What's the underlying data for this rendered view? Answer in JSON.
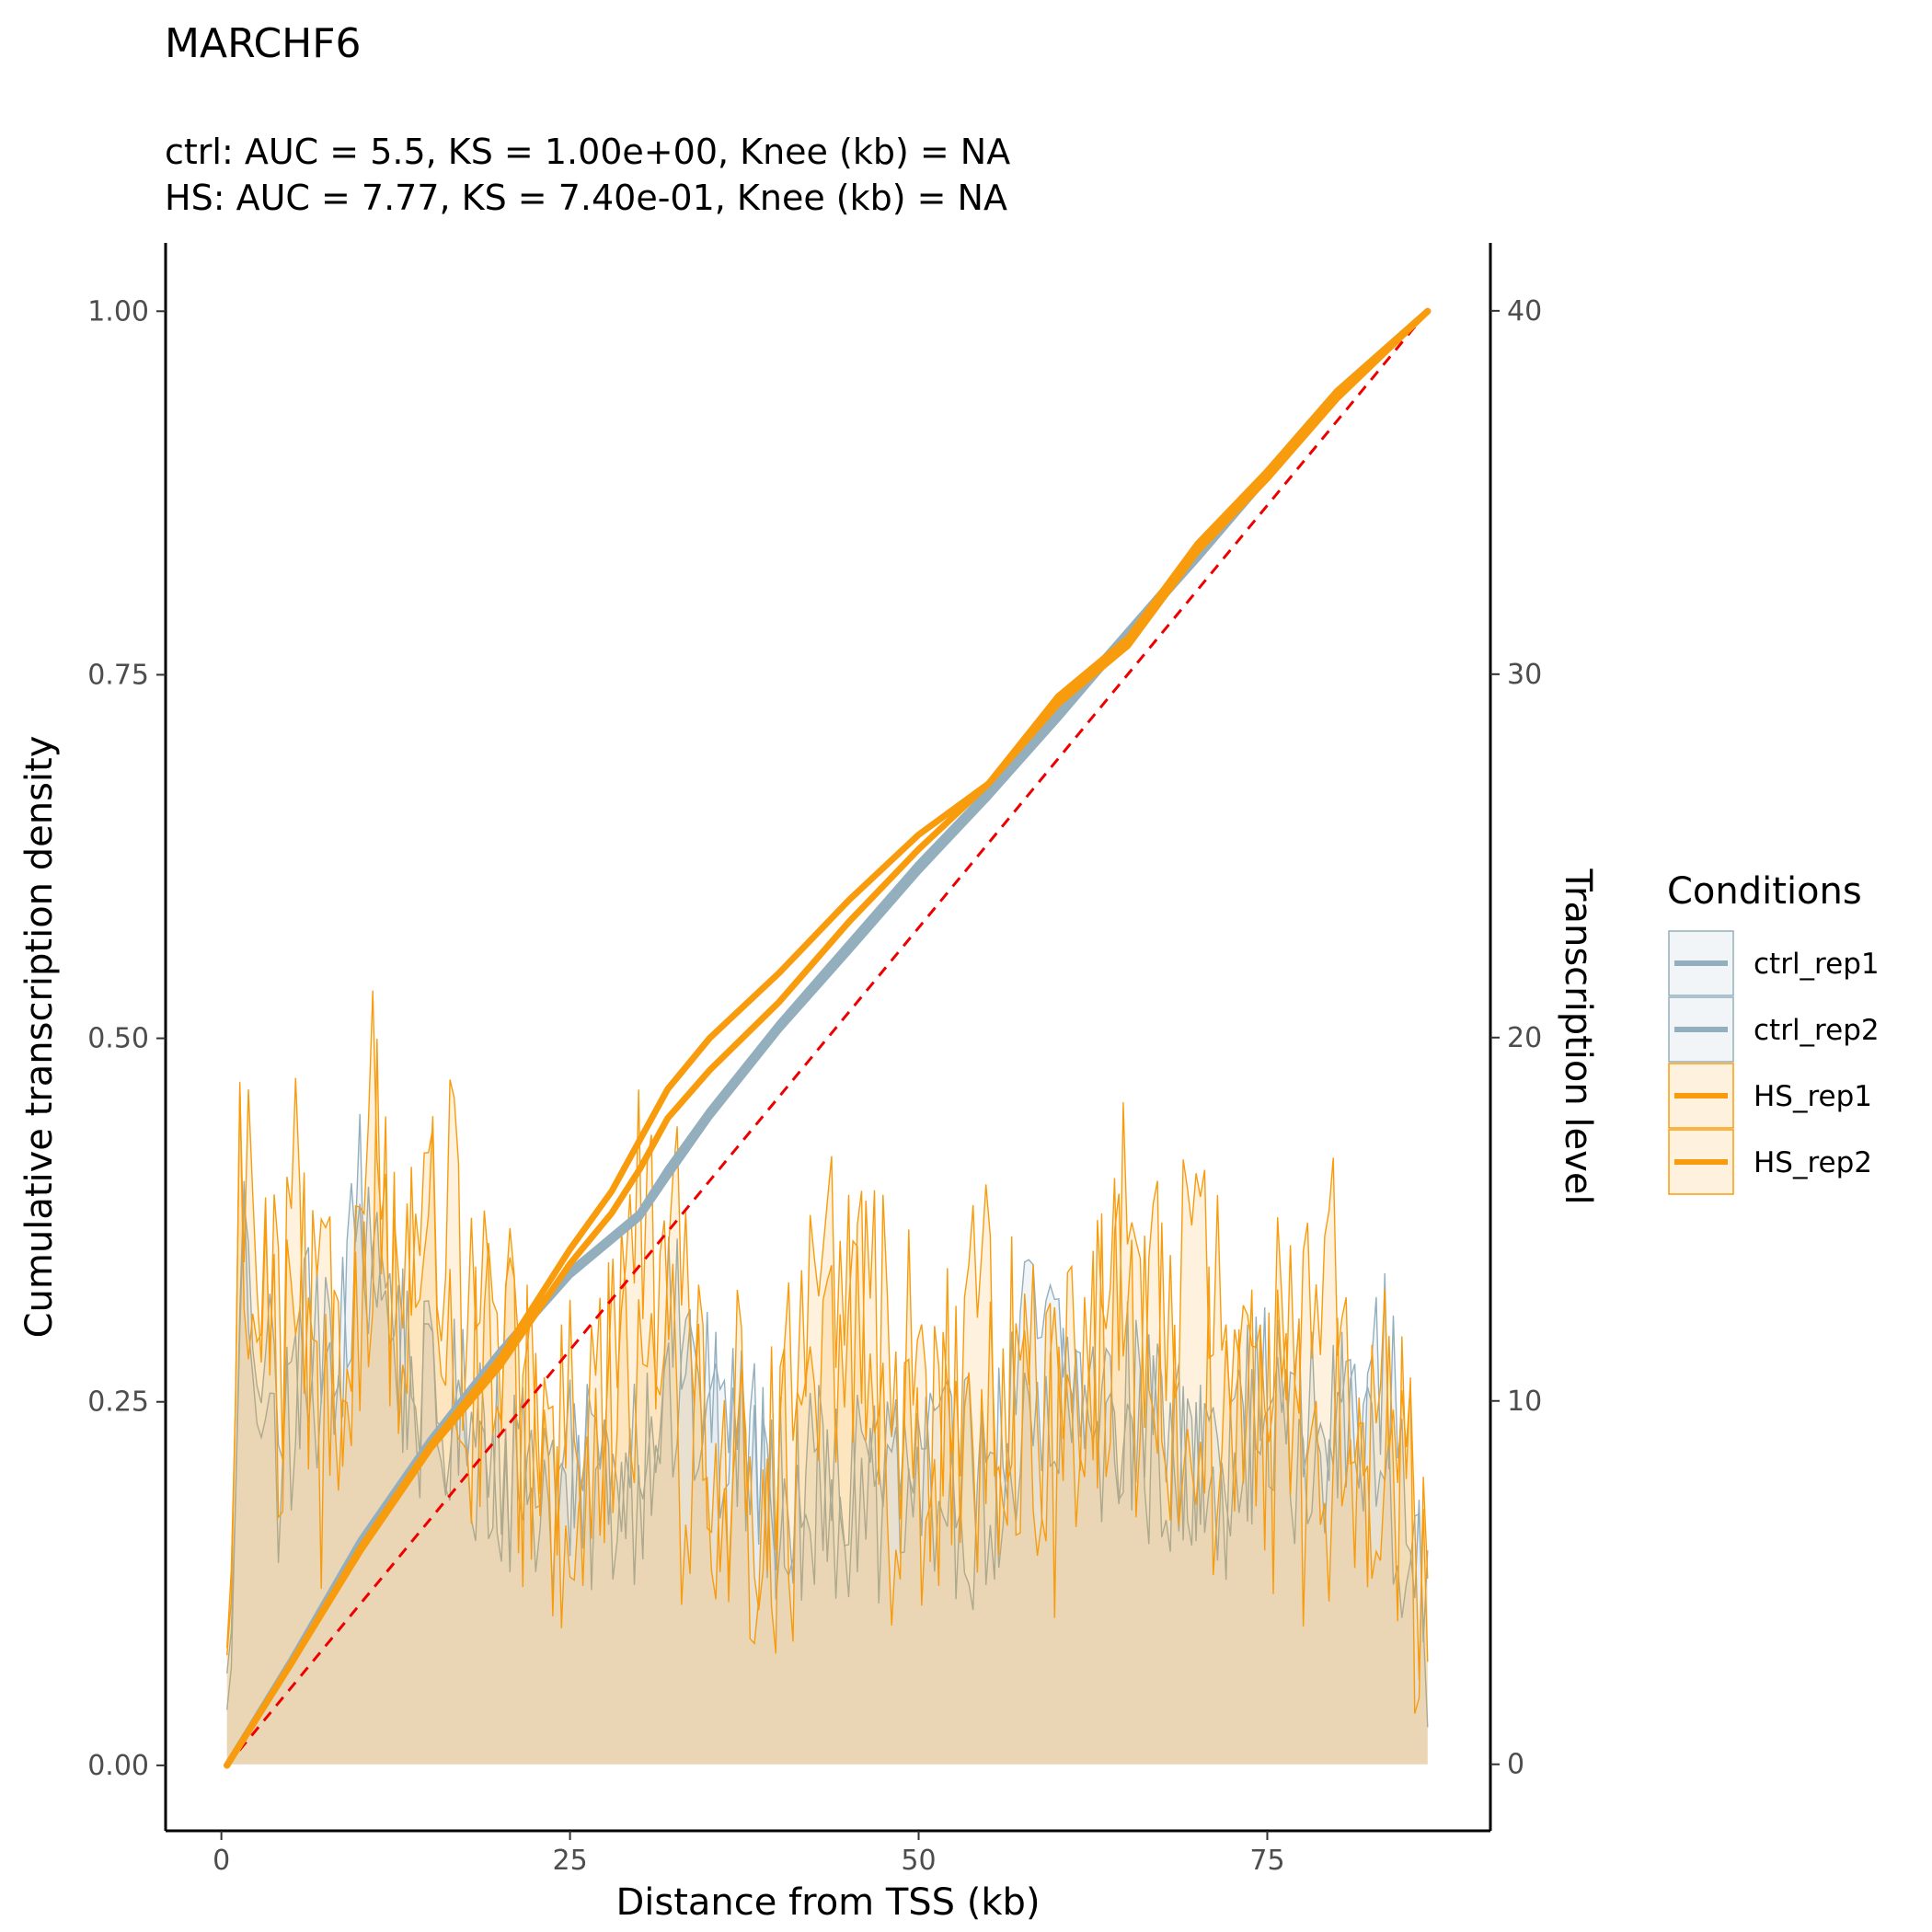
{
  "chart_data": {
    "type": "line",
    "title": "MARCHF6",
    "subtitle_lines": [
      "ctrl: AUC = 5.5, KS = 1.00e+00, Knee (kb) = NA",
      "HS: AUC = 7.77, KS = 7.40e-01, Knee (kb) = NA"
    ],
    "xlabel": "Distance from TSS (kb)",
    "ylabel": "Cumulative transcription density",
    "y2label": "Transcription level",
    "xlim": [
      -4,
      91
    ],
    "ylim": [
      -0.045,
      1.047
    ],
    "y2lim": [
      -1.83,
      41.87
    ],
    "x_ticks": [
      0,
      25,
      50,
      75
    ],
    "y_ticks": [
      "0.00",
      "0.25",
      "0.50",
      "0.75",
      "1.00"
    ],
    "y2_ticks": [
      0,
      10,
      20,
      30,
      40
    ],
    "grid": false,
    "legend": {
      "title": "Conditions",
      "position": "right",
      "entries": [
        {
          "name": "ctrl_rep1",
          "color": "#93afbe"
        },
        {
          "name": "ctrl_rep2",
          "color": "#93afbe"
        },
        {
          "name": "HS_rep1",
          "color": "#f89c0e"
        },
        {
          "name": "HS_rep2",
          "color": "#f89c0e"
        }
      ]
    },
    "diagonal": {
      "from": [
        0.4,
        0.0
      ],
      "to": [
        86.5,
        1.0
      ],
      "color": "#ee0000",
      "style": "dashed"
    },
    "cumulative_series": [
      {
        "name": "ctrl_rep1",
        "color": "#93afbe",
        "x": [
          0.4,
          5,
          10,
          15,
          20,
          25,
          30,
          32,
          35,
          40,
          45,
          50,
          55,
          60,
          65,
          70,
          75,
          80,
          86.5
        ],
        "y": [
          0.0,
          0.072,
          0.155,
          0.224,
          0.285,
          0.34,
          0.38,
          0.41,
          0.45,
          0.51,
          0.565,
          0.62,
          0.67,
          0.725,
          0.78,
          0.835,
          0.89,
          0.945,
          1.0
        ]
      },
      {
        "name": "ctrl_rep2",
        "color": "#93afbe",
        "x": [
          0.4,
          5,
          10,
          15,
          20,
          25,
          30,
          32,
          35,
          40,
          45,
          50,
          55,
          60,
          65,
          70,
          75,
          80,
          86.5
        ],
        "y": [
          0.0,
          0.07,
          0.153,
          0.222,
          0.283,
          0.337,
          0.377,
          0.405,
          0.446,
          0.506,
          0.56,
          0.615,
          0.666,
          0.72,
          0.776,
          0.83,
          0.886,
          0.942,
          1.0
        ]
      },
      {
        "name": "HS_rep1",
        "color": "#f89c0e",
        "x": [
          0.4,
          5,
          10,
          15,
          20,
          25,
          28,
          30,
          32,
          35,
          40,
          45,
          50,
          55,
          60,
          65,
          70,
          75,
          80,
          86.5
        ],
        "y": [
          0.0,
          0.07,
          0.15,
          0.22,
          0.28,
          0.355,
          0.395,
          0.43,
          0.465,
          0.5,
          0.545,
          0.595,
          0.64,
          0.675,
          0.735,
          0.775,
          0.84,
          0.89,
          0.945,
          1.0
        ]
      },
      {
        "name": "HS_rep2",
        "color": "#f89c0e",
        "x": [
          0.4,
          5,
          10,
          15,
          20,
          25,
          28,
          30,
          32,
          35,
          40,
          45,
          50,
          55,
          60,
          65,
          70,
          75,
          80,
          86.5
        ],
        "y": [
          0.0,
          0.07,
          0.148,
          0.218,
          0.275,
          0.345,
          0.38,
          0.41,
          0.445,
          0.478,
          0.525,
          0.58,
          0.63,
          0.675,
          0.73,
          0.77,
          0.835,
          0.885,
          0.94,
          1.0
        ]
      }
    ],
    "level_x_range": [
      0.4,
      86.5
    ],
    "level_series": [
      {
        "name": "ctrl_rep1",
        "color": "#93afbe",
        "mean": 7.5,
        "points": [
          [
            0.4,
            1.5
          ],
          [
            0.8,
            3
          ],
          [
            1.4,
            15
          ],
          [
            2,
            13
          ],
          [
            3,
            10
          ],
          [
            4,
            8
          ],
          [
            6,
            12
          ],
          [
            8,
            9
          ],
          [
            10,
            16
          ],
          [
            11,
            14
          ],
          [
            14,
            10
          ],
          [
            18,
            9
          ],
          [
            25,
            7
          ],
          [
            30,
            8
          ],
          [
            32,
            12
          ],
          [
            40,
            7
          ],
          [
            50,
            8
          ],
          [
            55,
            7
          ],
          [
            58,
            12
          ],
          [
            65,
            9
          ],
          [
            70,
            8
          ],
          [
            75,
            10
          ],
          [
            80,
            9
          ],
          [
            84,
            11
          ],
          [
            86.5,
            3
          ]
        ]
      },
      {
        "name": "ctrl_rep2",
        "color": "#93afbe",
        "mean": 7.5,
        "points": [
          [
            0.4,
            2.5
          ],
          [
            0.8,
            4
          ],
          [
            1.4,
            13
          ],
          [
            2.5,
            12
          ],
          [
            4,
            9
          ],
          [
            7,
            11
          ],
          [
            10,
            15
          ],
          [
            12,
            12
          ],
          [
            16,
            9
          ],
          [
            22,
            8
          ],
          [
            28,
            9
          ],
          [
            33,
            10
          ],
          [
            40,
            8
          ],
          [
            48,
            7
          ],
          [
            55,
            8
          ],
          [
            60,
            9
          ],
          [
            66,
            10
          ],
          [
            72,
            8
          ],
          [
            78,
            9
          ],
          [
            84,
            8
          ],
          [
            86.5,
            2.8
          ]
        ]
      },
      {
        "name": "HS_rep1",
        "color": "#f89c0e",
        "mean": 7.8,
        "points": [
          [
            0.4,
            3
          ],
          [
            0.8,
            5
          ],
          [
            1.4,
            19
          ],
          [
            2,
            12
          ],
          [
            3,
            14
          ],
          [
            4.5,
            10
          ],
          [
            5,
            16
          ],
          [
            7,
            8
          ],
          [
            9,
            13
          ],
          [
            10,
            15
          ],
          [
            11,
            19
          ],
          [
            12,
            13
          ],
          [
            14,
            16
          ],
          [
            18,
            9
          ],
          [
            20,
            11
          ],
          [
            25,
            6
          ],
          [
            30,
            15
          ],
          [
            33,
            8
          ],
          [
            38,
            7
          ],
          [
            43,
            16
          ],
          [
            48,
            8
          ],
          [
            52,
            9
          ],
          [
            55,
            12
          ],
          [
            60,
            8
          ],
          [
            65,
            16
          ],
          [
            68,
            10
          ],
          [
            72,
            9
          ],
          [
            76,
            11
          ],
          [
            80,
            13
          ],
          [
            83,
            7
          ],
          [
            84,
            12
          ],
          [
            86,
            6
          ],
          [
            86.5,
            3.5
          ]
        ]
      },
      {
        "name": "HS_rep2",
        "color": "#f89c0e",
        "mean": 7.8,
        "points": [
          [
            0.4,
            3.2
          ],
          [
            0.8,
            6
          ],
          [
            1.4,
            17
          ],
          [
            2.5,
            14
          ],
          [
            4,
            9
          ],
          [
            6,
            12
          ],
          [
            9,
            10
          ],
          [
            11,
            17
          ],
          [
            13,
            12
          ],
          [
            16,
            15
          ],
          [
            20,
            10
          ],
          [
            24,
            8
          ],
          [
            29,
            11
          ],
          [
            32,
            14
          ],
          [
            36,
            9
          ],
          [
            41,
            7
          ],
          [
            46,
            13
          ],
          [
            50,
            10
          ],
          [
            56,
            8
          ],
          [
            61,
            12
          ],
          [
            66,
            11
          ],
          [
            70,
            14
          ],
          [
            74,
            9
          ],
          [
            78,
            8
          ],
          [
            82,
            10
          ],
          [
            85,
            7
          ],
          [
            86.5,
            3.8
          ]
        ]
      }
    ]
  }
}
